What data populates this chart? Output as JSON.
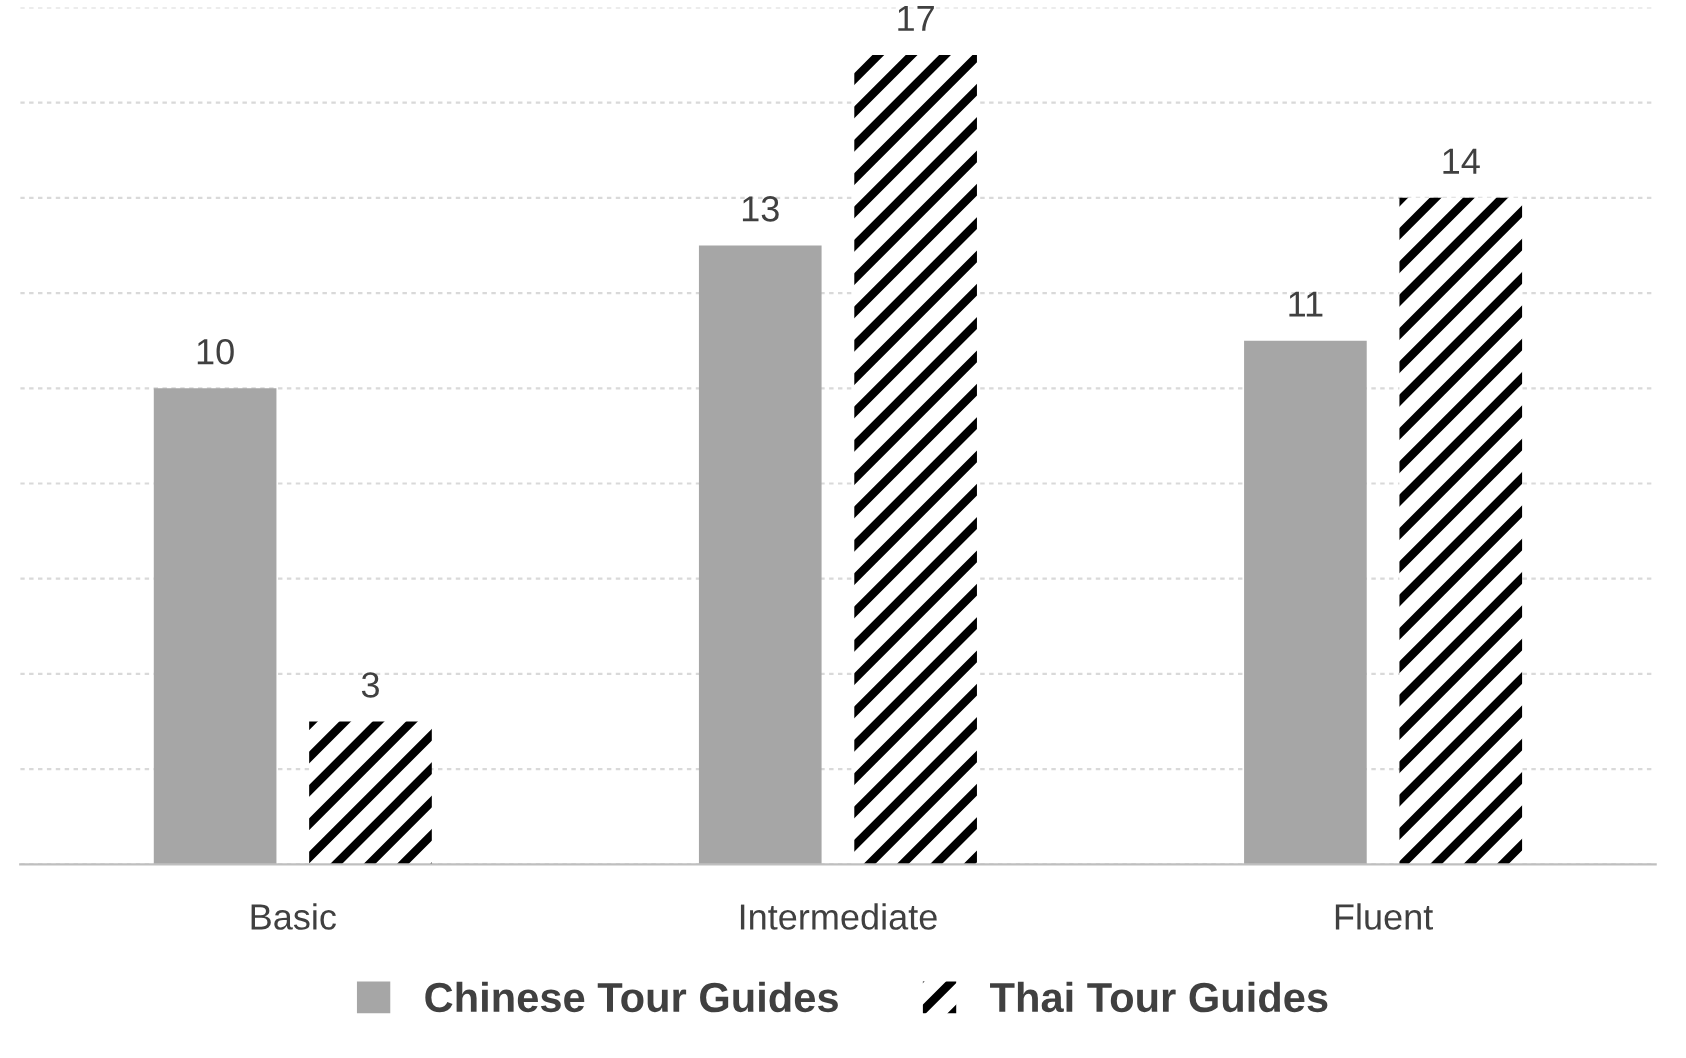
{
  "chart_data": {
    "type": "bar",
    "categories": [
      "Basic",
      "Intermediate",
      "Fluent"
    ],
    "series": [
      {
        "name": "Chinese Tour Guides",
        "color": "#a6a6a6",
        "values": [
          10,
          13,
          11
        ]
      },
      {
        "name": "Thai Tour Guides",
        "color": "#000000",
        "values": [
          3,
          17,
          14
        ]
      }
    ],
    "ylim": [
      0,
      18
    ],
    "yticks": [
      {
        "value": 0,
        "label": null
      },
      {
        "value": 2,
        "label": null
      },
      {
        "value": 4,
        "label": null
      },
      {
        "value": 6,
        "label": null
      },
      {
        "value": 8,
        "label": null
      },
      {
        "value": 10,
        "label": null
      },
      {
        "value": 12,
        "label": null
      },
      {
        "value": 14,
        "label": null
      },
      {
        "value": 16,
        "label": null
      },
      {
        "value": 18,
        "label": null
      }
    ],
    "tick_labels": "x",
    "grid": "y",
    "legend": "bottom",
    "data_labels": true
  }
}
